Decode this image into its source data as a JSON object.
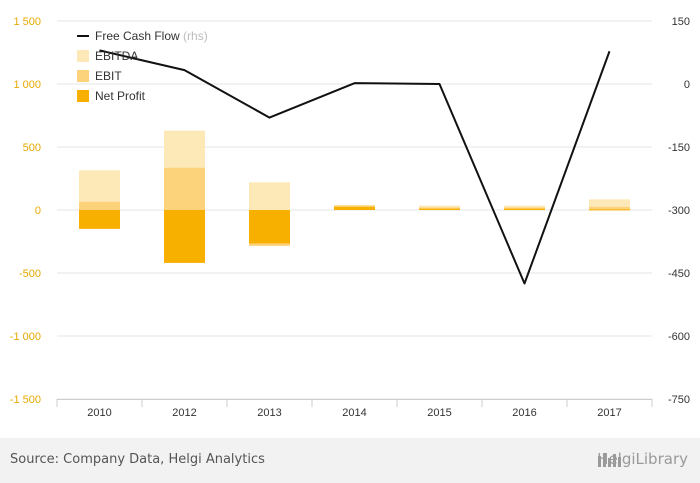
{
  "chart_data": {
    "type": "bar",
    "categories": [
      "2010",
      "2012",
      "2013",
      "2014",
      "2015",
      "2016",
      "2017"
    ],
    "series": [
      {
        "name": "EBITDA",
        "kind": "bar",
        "axis": "left",
        "color": "#fde9b8",
        "values": [
          315,
          630,
          220,
          40,
          35,
          35,
          85
        ]
      },
      {
        "name": "EBIT",
        "kind": "bar",
        "axis": "left",
        "color": "#fcd27a",
        "values": [
          65,
          335,
          -285,
          35,
          20,
          20,
          25
        ]
      },
      {
        "name": "Net Profit",
        "kind": "bar",
        "axis": "left",
        "color": "#f7b000",
        "values": [
          -150,
          -420,
          -265,
          25,
          10,
          10,
          5
        ]
      },
      {
        "name": "Free Cash Flow",
        "kind": "line",
        "axis": "right",
        "color": "#111111",
        "values": [
          80,
          33,
          -80,
          2,
          0,
          -475,
          78
        ]
      }
    ],
    "y_left": {
      "min": -1500,
      "max": 1500,
      "ticks": [
        1500,
        1000,
        500,
        0,
        -500,
        -1000,
        -1500
      ],
      "tick_labels": [
        "1 500",
        "1 000",
        "500",
        "0",
        "-500",
        "-1 000",
        "-1 500"
      ]
    },
    "y_right": {
      "min": -750,
      "max": 150,
      "ticks": [
        150,
        0,
        -150,
        -300,
        -450,
        -600,
        -750
      ],
      "tick_labels": [
        "150",
        "0",
        "-150",
        "-300",
        "-450",
        "-600",
        "-750"
      ]
    },
    "legend": [
      {
        "label": "Free Cash Flow",
        "suffix": "(rhs)",
        "marker": "line",
        "color": "#111111"
      },
      {
        "label": "EBITDA",
        "suffix": "",
        "marker": "square",
        "color": "#fde9b8"
      },
      {
        "label": "EBIT",
        "suffix": "",
        "marker": "square",
        "color": "#fcd27a"
      },
      {
        "label": "Net Profit",
        "suffix": "",
        "marker": "square",
        "color": "#f7b000"
      }
    ],
    "legend_position": "top-left",
    "grid": true
  },
  "footer": {
    "source": "Source: Company Data, Helgi Analytics",
    "brand": "HelgiLibrary"
  }
}
